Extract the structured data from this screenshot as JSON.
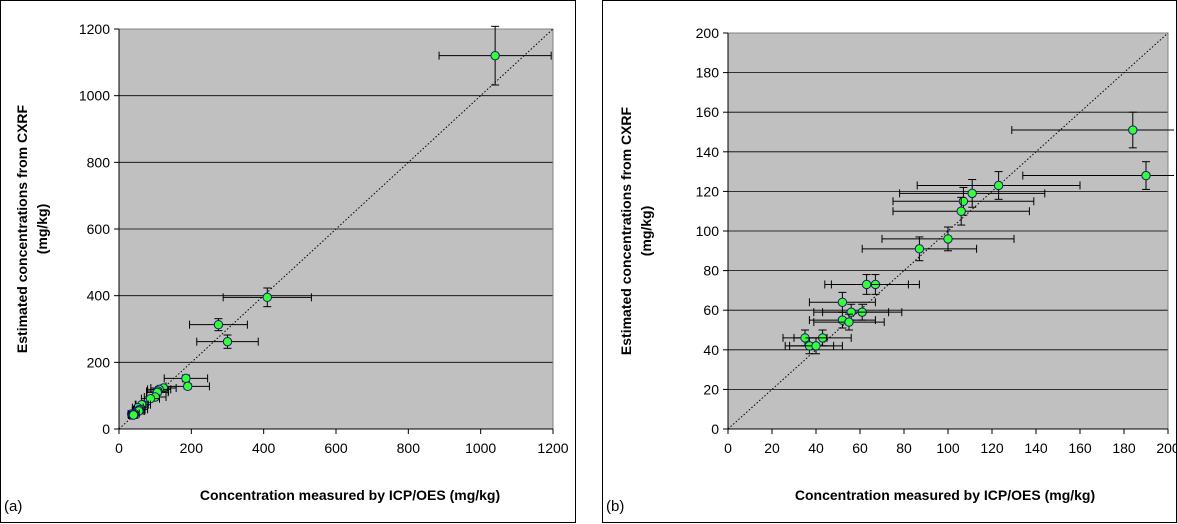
{
  "colors": {
    "plot_background": "#c0c0c0",
    "gridline": "#000000",
    "point_fill": "#33ff33",
    "point_stroke": "#1a1a6e",
    "error_bar": "#000000",
    "identity_line": "#000000"
  },
  "chart_data": [
    {
      "type": "scatter",
      "panel_label": "(a)",
      "xlabel": "Concentration measured by ICP/OES (mg/kg)",
      "ylabel_line1": "Estimated concentrations from CXRF",
      "ylabel_line2": "(mg/kg)",
      "xlim": [
        0,
        1200
      ],
      "ylim": [
        0,
        1200
      ],
      "xticks": [
        0,
        200,
        400,
        600,
        800,
        1000,
        1200
      ],
      "yticks": [
        0,
        200,
        400,
        600,
        800,
        1000,
        1200
      ],
      "grid": "horizontal",
      "identity_line": true,
      "points": [
        {
          "x": 1040,
          "y": 1120,
          "xerr": 155,
          "yerr": 88
        },
        {
          "x": 410,
          "y": 395,
          "xerr": 122,
          "yerr": 28
        },
        {
          "x": 275,
          "y": 313,
          "xerr": 80,
          "yerr": 18
        },
        {
          "x": 300,
          "y": 262,
          "xerr": 85,
          "yerr": 20
        },
        {
          "x": 185,
          "y": 152,
          "xerr": 60,
          "yerr": 10
        },
        {
          "x": 190,
          "y": 128,
          "xerr": 60,
          "yerr": 8
        },
        {
          "x": 123,
          "y": 123,
          "xerr": 35,
          "yerr": 8
        },
        {
          "x": 111,
          "y": 119,
          "xerr": 32,
          "yerr": 8
        },
        {
          "x": 107,
          "y": 114,
          "xerr": 30,
          "yerr": 8
        },
        {
          "x": 106,
          "y": 110,
          "xerr": 30,
          "yerr": 8
        },
        {
          "x": 100,
          "y": 96,
          "xerr": 30,
          "yerr": 7
        },
        {
          "x": 87,
          "y": 91,
          "xerr": 25,
          "yerr": 7
        },
        {
          "x": 67,
          "y": 73,
          "xerr": 20,
          "yerr": 6
        },
        {
          "x": 63,
          "y": 73,
          "xerr": 18,
          "yerr": 6
        },
        {
          "x": 52,
          "y": 64,
          "xerr": 15,
          "yerr": 6
        },
        {
          "x": 61,
          "y": 59,
          "xerr": 18,
          "yerr": 5
        },
        {
          "x": 56,
          "y": 58,
          "xerr": 16,
          "yerr": 5
        },
        {
          "x": 52,
          "y": 55,
          "xerr": 15,
          "yerr": 5
        },
        {
          "x": 55,
          "y": 54,
          "xerr": 16,
          "yerr": 5
        },
        {
          "x": 43,
          "y": 46,
          "xerr": 13,
          "yerr": 5
        },
        {
          "x": 35,
          "y": 45,
          "xerr": 10,
          "yerr": 5
        },
        {
          "x": 37,
          "y": 42,
          "xerr": 11,
          "yerr": 5
        },
        {
          "x": 40,
          "y": 42,
          "xerr": 12,
          "yerr": 5
        }
      ]
    },
    {
      "type": "scatter",
      "panel_label": "(b)",
      "xlabel": "Concentration measured by ICP/OES (mg/kg)",
      "ylabel_line1": "Estimated concentrations from CXRF",
      "ylabel_line2": "(mg/kg)",
      "xlim": [
        0,
        200
      ],
      "ylim": [
        0,
        200
      ],
      "xticks": [
        0,
        20,
        40,
        60,
        80,
        100,
        120,
        140,
        160,
        180,
        200
      ],
      "yticks": [
        0,
        20,
        40,
        60,
        80,
        100,
        120,
        140,
        160,
        180,
        200
      ],
      "grid": "horizontal",
      "identity_line": true,
      "points": [
        {
          "x": 184,
          "y": 151,
          "xerr": 55,
          "yerr": 9
        },
        {
          "x": 190,
          "y": 128,
          "xerr": 56,
          "yerr": 7
        },
        {
          "x": 123,
          "y": 123,
          "xerr": 37,
          "yerr": 7
        },
        {
          "x": 111,
          "y": 119,
          "xerr": 33,
          "yerr": 7
        },
        {
          "x": 107,
          "y": 115,
          "xerr": 32,
          "yerr": 7
        },
        {
          "x": 106,
          "y": 110,
          "xerr": 31,
          "yerr": 7
        },
        {
          "x": 100,
          "y": 96,
          "xerr": 30,
          "yerr": 6
        },
        {
          "x": 87,
          "y": 91,
          "xerr": 26,
          "yerr": 6
        },
        {
          "x": 67,
          "y": 73,
          "xerr": 20,
          "yerr": 5
        },
        {
          "x": 63,
          "y": 73,
          "xerr": 19,
          "yerr": 5
        },
        {
          "x": 52,
          "y": 64,
          "xerr": 15,
          "yerr": 5
        },
        {
          "x": 61,
          "y": 59,
          "xerr": 18,
          "yerr": 4
        },
        {
          "x": 56,
          "y": 59,
          "xerr": 17,
          "yerr": 4
        },
        {
          "x": 52,
          "y": 55,
          "xerr": 15,
          "yerr": 4
        },
        {
          "x": 55,
          "y": 54,
          "xerr": 16,
          "yerr": 4
        },
        {
          "x": 43,
          "y": 46,
          "xerr": 13,
          "yerr": 4
        },
        {
          "x": 35,
          "y": 46,
          "xerr": 10,
          "yerr": 4
        },
        {
          "x": 37,
          "y": 42,
          "xerr": 11,
          "yerr": 4
        },
        {
          "x": 40,
          "y": 42,
          "xerr": 12,
          "yerr": 4
        }
      ]
    }
  ]
}
